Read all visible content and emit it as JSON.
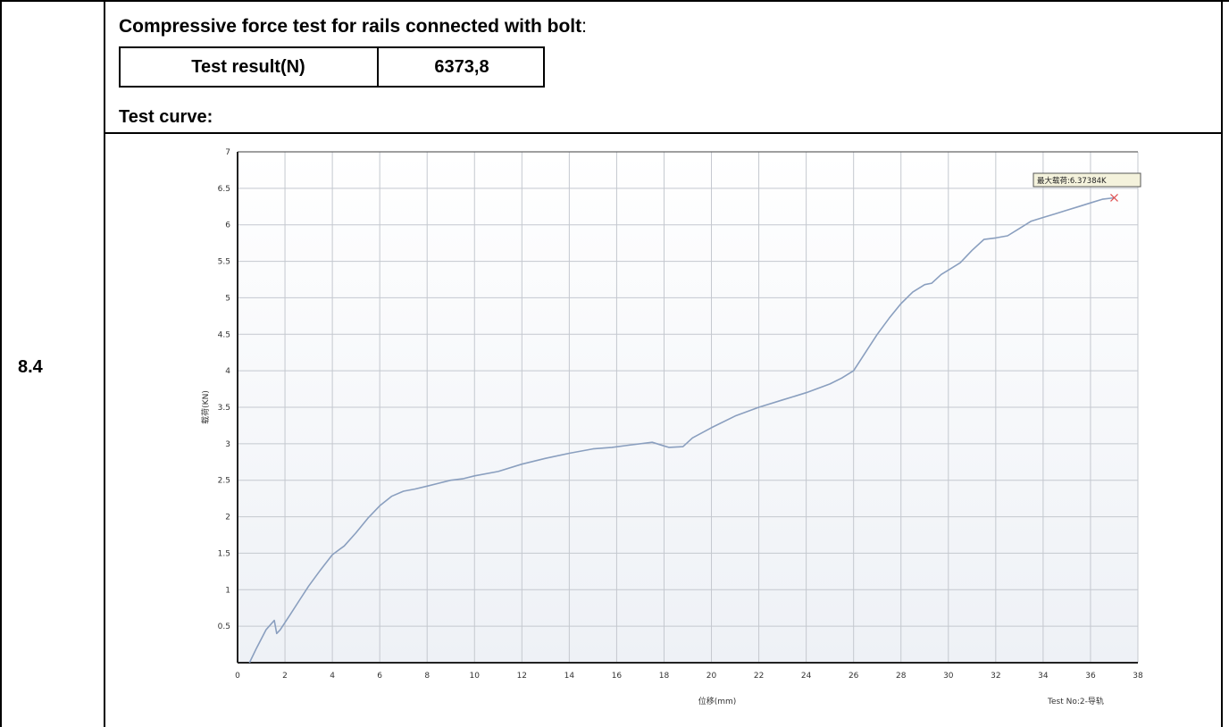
{
  "section": {
    "number": "8.4"
  },
  "heading": {
    "text": "Compressive force test for rails connected with bolt",
    "colon": ":"
  },
  "result_table": {
    "label": "Test result(N)",
    "value": "6373,8"
  },
  "curve_label": "Test curve:",
  "chart_data": {
    "type": "line",
    "title": "",
    "xlabel": "位移(mm)",
    "ylabel": "载荷(KN)",
    "footer": "Test No:2-导轨",
    "max_label": "最大载荷:6.37384K",
    "xlim": [
      0,
      38
    ],
    "ylim": [
      0,
      7
    ],
    "x_ticks": [
      0,
      2,
      4,
      6,
      8,
      10,
      12,
      14,
      16,
      18,
      20,
      22,
      24,
      26,
      28,
      30,
      32,
      34,
      36,
      38
    ],
    "y_ticks": [
      0.5,
      1,
      1.5,
      2,
      2.5,
      3,
      3.5,
      4,
      4.5,
      5,
      5.5,
      6,
      6.5,
      7
    ],
    "grid": true,
    "line_color": "#8a9fbf",
    "marker_color": "#e05050",
    "series": [
      {
        "x": [
          0.5,
          0.8,
          1.2,
          1.55,
          1.65,
          1.8,
          2.2,
          2.6,
          3.0,
          3.5,
          4.0,
          4.5,
          5.0,
          5.5,
          6.0,
          6.5,
          7.0,
          7.5,
          8.0,
          8.5,
          9.0,
          9.5,
          10.0,
          11.0,
          12.0,
          13.0,
          14.0,
          15.0,
          15.8,
          16.5,
          17.5,
          18.0,
          18.2,
          18.8,
          19.2,
          20.0,
          21.0,
          22.0,
          23.0,
          24.0,
          25.0,
          25.5,
          26.0,
          26.3,
          26.6,
          27.0,
          27.5,
          28.0,
          28.5,
          29.0,
          29.3,
          29.7,
          30.0,
          30.5,
          31.0,
          31.5,
          32.0,
          32.5,
          33.0,
          33.5,
          34.0,
          34.5,
          35.0,
          35.5,
          36.0,
          36.5,
          37.0
        ],
        "y": [
          0.0,
          0.2,
          0.45,
          0.58,
          0.4,
          0.45,
          0.65,
          0.85,
          1.05,
          1.27,
          1.48,
          1.6,
          1.78,
          1.98,
          2.15,
          2.28,
          2.35,
          2.38,
          2.42,
          2.46,
          2.5,
          2.52,
          2.56,
          2.62,
          2.72,
          2.8,
          2.87,
          2.93,
          2.95,
          2.98,
          3.02,
          2.97,
          2.95,
          2.96,
          3.08,
          3.22,
          3.38,
          3.5,
          3.6,
          3.7,
          3.82,
          3.9,
          4.0,
          4.15,
          4.3,
          4.5,
          4.72,
          4.92,
          5.08,
          5.18,
          5.2,
          5.32,
          5.38,
          5.48,
          5.65,
          5.8,
          5.82,
          5.85,
          5.95,
          6.05,
          6.1,
          6.15,
          6.2,
          6.25,
          6.3,
          6.35,
          6.37
        ]
      }
    ]
  }
}
